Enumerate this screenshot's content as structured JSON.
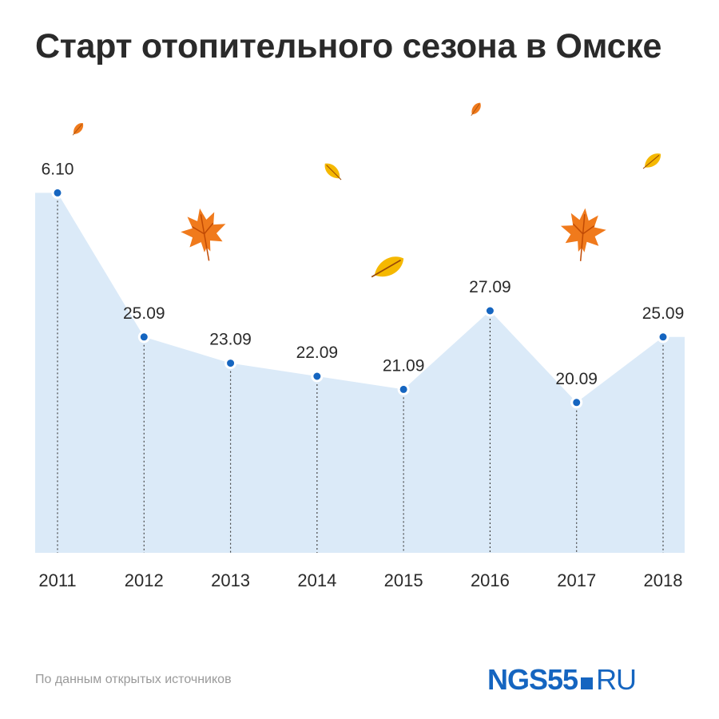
{
  "title": "Старт отопительного сезона в Омске",
  "source": "По данным открытых источников",
  "logo": {
    "brand": "NGS55",
    "tld": "RU"
  },
  "colors": {
    "area": "#dbeaf8",
    "point": "#1565c0",
    "guide": "#444444",
    "leaf_orange": "#f07a1c",
    "leaf_yellow": "#f5b800"
  },
  "chart_data": {
    "type": "area",
    "title": "Старт отопительного сезона в Омске",
    "categories": [
      "2011",
      "2012",
      "2013",
      "2014",
      "2015",
      "2016",
      "2017",
      "2018"
    ],
    "data_labels": [
      "6.10",
      "25.09",
      "23.09",
      "22.09",
      "21.09",
      "27.09",
      "20.09",
      "25.09"
    ],
    "values_day_of_september": [
      36,
      25,
      23,
      22,
      21,
      27,
      20,
      25
    ],
    "ylim": [
      1,
      38
    ],
    "grid": false,
    "legend": "none"
  }
}
